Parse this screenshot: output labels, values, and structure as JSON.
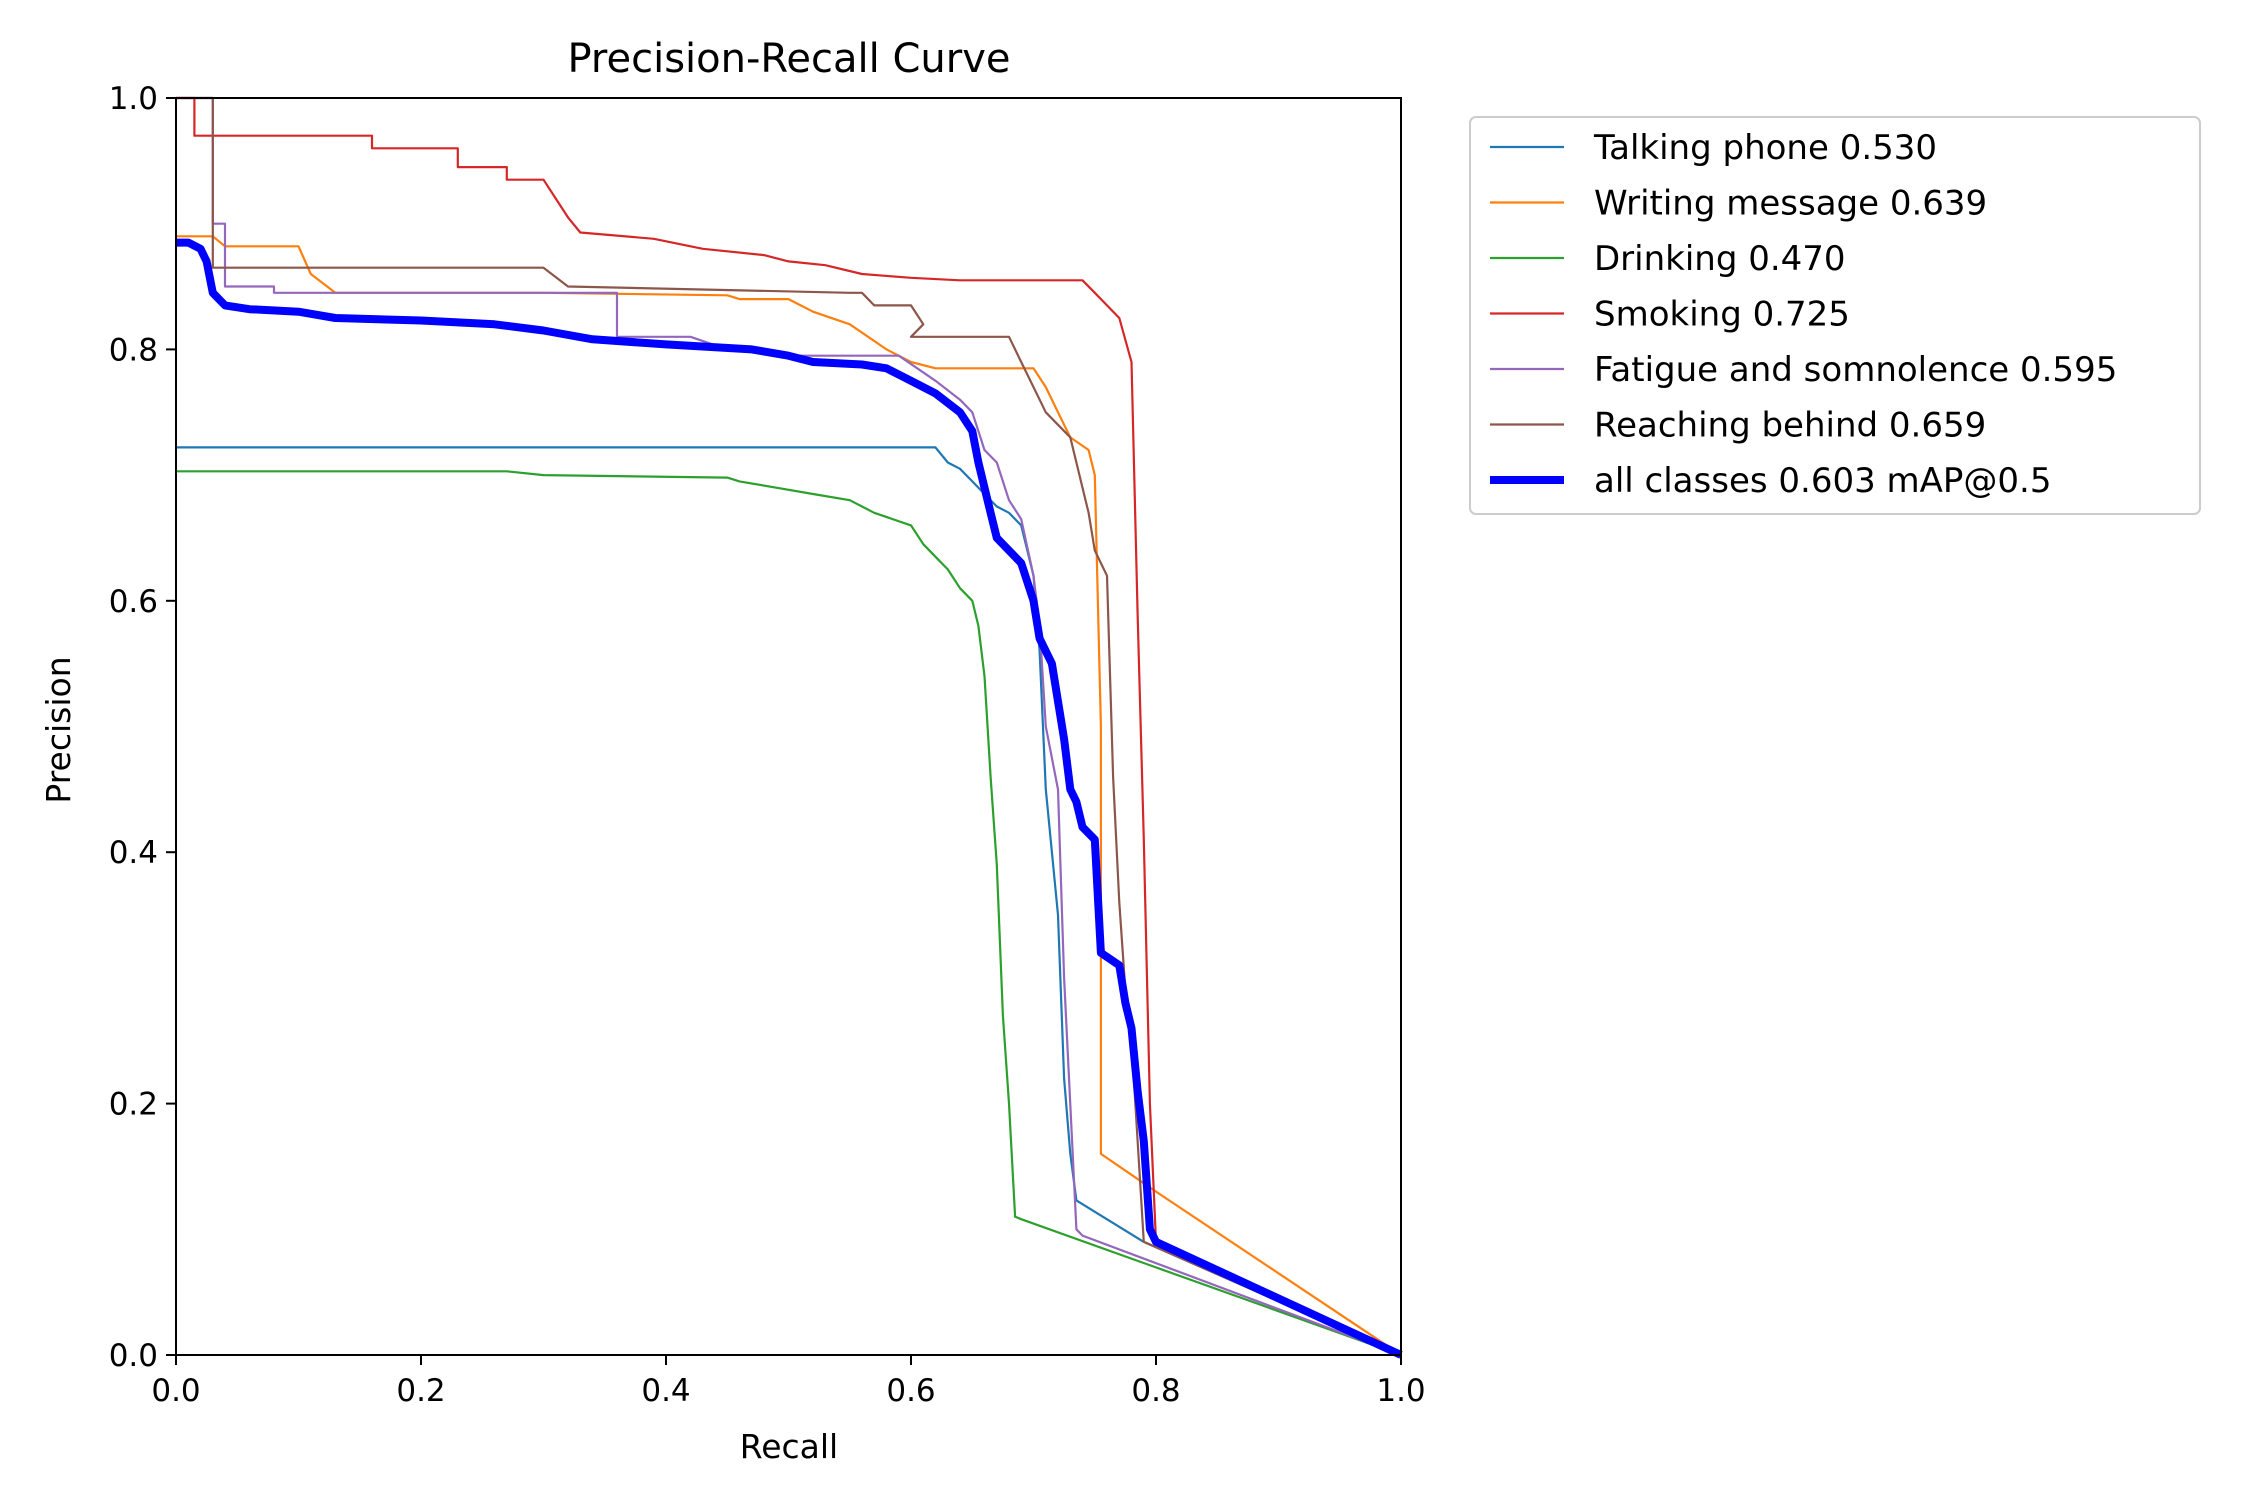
{
  "chart_data": {
    "type": "line",
    "title": "Precision-Recall Curve",
    "xlabel": "Recall",
    "ylabel": "Precision",
    "xlim": [
      0,
      1
    ],
    "ylim": [
      0,
      1
    ],
    "x_ticks": [
      "0.0",
      "0.2",
      "0.4",
      "0.6",
      "0.8",
      "1.0"
    ],
    "y_ticks": [
      "0.0",
      "0.2",
      "0.4",
      "0.6",
      "0.8",
      "1.0"
    ],
    "grid": false,
    "legend_position": "outside top-right",
    "series": [
      {
        "name": "Talking phone 0.530",
        "color": "#1f77b4",
        "points": [
          [
            0.0,
            0.722
          ],
          [
            0.6,
            0.722
          ],
          [
            0.62,
            0.722
          ],
          [
            0.63,
            0.71
          ],
          [
            0.64,
            0.705
          ],
          [
            0.65,
            0.695
          ],
          [
            0.66,
            0.685
          ],
          [
            0.67,
            0.675
          ],
          [
            0.68,
            0.67
          ],
          [
            0.69,
            0.66
          ],
          [
            0.7,
            0.62
          ],
          [
            0.705,
            0.56
          ],
          [
            0.71,
            0.45
          ],
          [
            0.715,
            0.4
          ],
          [
            0.72,
            0.35
          ],
          [
            0.725,
            0.22
          ],
          [
            0.73,
            0.16
          ],
          [
            0.735,
            0.123
          ],
          [
            0.79,
            0.09
          ],
          [
            1.0,
            0.0
          ]
        ]
      },
      {
        "name": "Writing message 0.639",
        "color": "#ff7f0e",
        "points": [
          [
            0.0,
            0.89
          ],
          [
            0.03,
            0.89
          ],
          [
            0.04,
            0.882
          ],
          [
            0.1,
            0.882
          ],
          [
            0.11,
            0.86
          ],
          [
            0.13,
            0.845
          ],
          [
            0.3,
            0.845
          ],
          [
            0.45,
            0.843
          ],
          [
            0.46,
            0.84
          ],
          [
            0.5,
            0.84
          ],
          [
            0.52,
            0.83
          ],
          [
            0.55,
            0.82
          ],
          [
            0.58,
            0.8
          ],
          [
            0.6,
            0.79
          ],
          [
            0.62,
            0.785
          ],
          [
            0.7,
            0.785
          ],
          [
            0.71,
            0.77
          ],
          [
            0.72,
            0.75
          ],
          [
            0.73,
            0.73
          ],
          [
            0.745,
            0.72
          ],
          [
            0.75,
            0.7
          ],
          [
            0.755,
            0.5
          ],
          [
            0.755,
            0.16
          ],
          [
            0.8,
            0.13
          ],
          [
            1.0,
            0.0
          ]
        ]
      },
      {
        "name": "Drinking 0.470",
        "color": "#2ca02c",
        "points": [
          [
            0.0,
            0.703
          ],
          [
            0.27,
            0.703
          ],
          [
            0.3,
            0.7
          ],
          [
            0.45,
            0.698
          ],
          [
            0.46,
            0.695
          ],
          [
            0.49,
            0.69
          ],
          [
            0.52,
            0.685
          ],
          [
            0.55,
            0.68
          ],
          [
            0.57,
            0.67
          ],
          [
            0.6,
            0.66
          ],
          [
            0.61,
            0.645
          ],
          [
            0.62,
            0.635
          ],
          [
            0.63,
            0.625
          ],
          [
            0.64,
            0.61
          ],
          [
            0.65,
            0.6
          ],
          [
            0.655,
            0.58
          ],
          [
            0.66,
            0.54
          ],
          [
            0.665,
            0.46
          ],
          [
            0.67,
            0.39
          ],
          [
            0.675,
            0.27
          ],
          [
            0.68,
            0.2
          ],
          [
            0.685,
            0.11
          ],
          [
            0.69,
            0.108
          ],
          [
            1.0,
            0.0
          ]
        ]
      },
      {
        "name": "Smoking 0.725",
        "color": "#d62728",
        "points": [
          [
            0.0,
            1.0
          ],
          [
            0.015,
            1.0
          ],
          [
            0.015,
            0.97
          ],
          [
            0.16,
            0.97
          ],
          [
            0.16,
            0.96
          ],
          [
            0.23,
            0.96
          ],
          [
            0.23,
            0.945
          ],
          [
            0.27,
            0.945
          ],
          [
            0.27,
            0.935
          ],
          [
            0.3,
            0.935
          ],
          [
            0.31,
            0.92
          ],
          [
            0.32,
            0.905
          ],
          [
            0.33,
            0.893
          ],
          [
            0.39,
            0.888
          ],
          [
            0.43,
            0.88
          ],
          [
            0.48,
            0.875
          ],
          [
            0.5,
            0.87
          ],
          [
            0.53,
            0.867
          ],
          [
            0.56,
            0.86
          ],
          [
            0.6,
            0.857
          ],
          [
            0.64,
            0.855
          ],
          [
            0.74,
            0.855
          ],
          [
            0.75,
            0.845
          ],
          [
            0.76,
            0.835
          ],
          [
            0.77,
            0.825
          ],
          [
            0.78,
            0.79
          ],
          [
            0.785,
            0.59
          ],
          [
            0.79,
            0.41
          ],
          [
            0.795,
            0.2
          ],
          [
            0.8,
            0.09
          ],
          [
            1.0,
            0.0
          ]
        ]
      },
      {
        "name": "Fatigue and somnolence 0.595",
        "color": "#9467bd",
        "points": [
          [
            0.0,
            1.0
          ],
          [
            0.03,
            1.0
          ],
          [
            0.03,
            0.9
          ],
          [
            0.04,
            0.9
          ],
          [
            0.04,
            0.85
          ],
          [
            0.08,
            0.85
          ],
          [
            0.08,
            0.845
          ],
          [
            0.3,
            0.845
          ],
          [
            0.36,
            0.845
          ],
          [
            0.36,
            0.81
          ],
          [
            0.42,
            0.81
          ],
          [
            0.45,
            0.8
          ],
          [
            0.5,
            0.795
          ],
          [
            0.59,
            0.795
          ],
          [
            0.62,
            0.775
          ],
          [
            0.64,
            0.76
          ],
          [
            0.65,
            0.75
          ],
          [
            0.66,
            0.72
          ],
          [
            0.67,
            0.71
          ],
          [
            0.68,
            0.68
          ],
          [
            0.69,
            0.665
          ],
          [
            0.7,
            0.62
          ],
          [
            0.705,
            0.58
          ],
          [
            0.71,
            0.5
          ],
          [
            0.72,
            0.45
          ],
          [
            0.725,
            0.3
          ],
          [
            0.735,
            0.1
          ],
          [
            0.74,
            0.095
          ],
          [
            1.0,
            0.0
          ]
        ]
      },
      {
        "name": "Reaching behind 0.659",
        "color": "#8c564b",
        "points": [
          [
            0.0,
            1.0
          ],
          [
            0.03,
            1.0
          ],
          [
            0.03,
            0.865
          ],
          [
            0.3,
            0.865
          ],
          [
            0.32,
            0.85
          ],
          [
            0.55,
            0.845
          ],
          [
            0.56,
            0.845
          ],
          [
            0.57,
            0.835
          ],
          [
            0.6,
            0.835
          ],
          [
            0.61,
            0.82
          ],
          [
            0.6,
            0.81
          ],
          [
            0.68,
            0.81
          ],
          [
            0.69,
            0.79
          ],
          [
            0.7,
            0.77
          ],
          [
            0.71,
            0.75
          ],
          [
            0.72,
            0.74
          ],
          [
            0.73,
            0.73
          ],
          [
            0.735,
            0.71
          ],
          [
            0.74,
            0.69
          ],
          [
            0.745,
            0.67
          ],
          [
            0.75,
            0.64
          ],
          [
            0.76,
            0.62
          ],
          [
            0.765,
            0.46
          ],
          [
            0.77,
            0.36
          ],
          [
            0.775,
            0.29
          ],
          [
            0.78,
            0.25
          ],
          [
            0.79,
            0.09
          ],
          [
            1.0,
            0.0
          ]
        ]
      },
      {
        "name": "all classes 0.603 mAP@0.5",
        "color": "#0000ff",
        "points": [
          [
            0.0,
            0.885
          ],
          [
            0.01,
            0.885
          ],
          [
            0.02,
            0.88
          ],
          [
            0.025,
            0.87
          ],
          [
            0.03,
            0.845
          ],
          [
            0.04,
            0.835
          ],
          [
            0.06,
            0.832
          ],
          [
            0.1,
            0.83
          ],
          [
            0.13,
            0.825
          ],
          [
            0.2,
            0.823
          ],
          [
            0.26,
            0.82
          ],
          [
            0.3,
            0.815
          ],
          [
            0.34,
            0.808
          ],
          [
            0.4,
            0.804
          ],
          [
            0.47,
            0.8
          ],
          [
            0.5,
            0.795
          ],
          [
            0.52,
            0.79
          ],
          [
            0.56,
            0.788
          ],
          [
            0.58,
            0.785
          ],
          [
            0.6,
            0.775
          ],
          [
            0.62,
            0.765
          ],
          [
            0.64,
            0.75
          ],
          [
            0.65,
            0.735
          ],
          [
            0.655,
            0.71
          ],
          [
            0.66,
            0.69
          ],
          [
            0.665,
            0.67
          ],
          [
            0.67,
            0.65
          ],
          [
            0.68,
            0.64
          ],
          [
            0.69,
            0.63
          ],
          [
            0.7,
            0.6
          ],
          [
            0.705,
            0.57
          ],
          [
            0.715,
            0.55
          ],
          [
            0.72,
            0.52
          ],
          [
            0.725,
            0.49
          ],
          [
            0.73,
            0.45
          ],
          [
            0.735,
            0.44
          ],
          [
            0.74,
            0.42
          ],
          [
            0.75,
            0.41
          ],
          [
            0.755,
            0.32
          ],
          [
            0.77,
            0.31
          ],
          [
            0.775,
            0.28
          ],
          [
            0.78,
            0.26
          ],
          [
            0.785,
            0.21
          ],
          [
            0.79,
            0.17
          ],
          [
            0.795,
            0.1
          ],
          [
            0.8,
            0.09
          ],
          [
            1.0,
            0.0
          ]
        ]
      }
    ]
  }
}
